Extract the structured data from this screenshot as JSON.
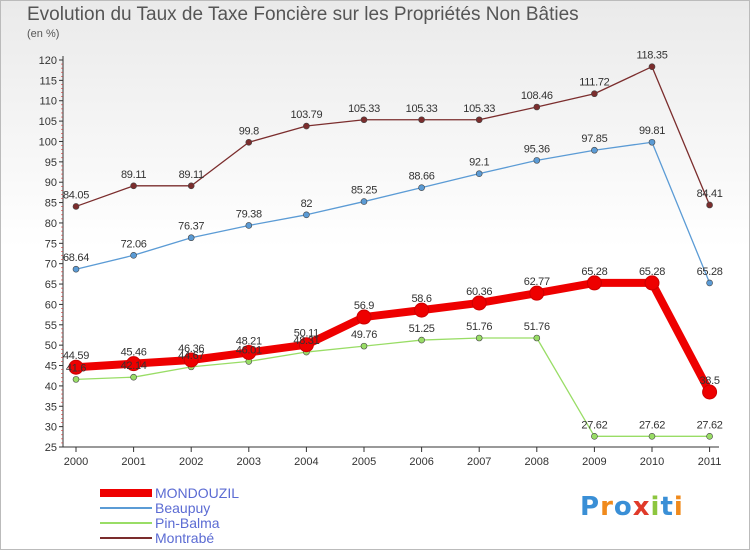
{
  "chart_data": {
    "type": "line",
    "title": "Evolution du Taux de Taxe Foncière sur les Propriétés Non Bâties",
    "subtitle": "(en %)",
    "x": [
      "2000",
      "2001",
      "2002",
      "2003",
      "2004",
      "2005",
      "2006",
      "2007",
      "2008",
      "2009",
      "2010",
      "2011"
    ],
    "ylim": [
      25,
      120
    ],
    "yticks": [
      25,
      30,
      35,
      40,
      45,
      50,
      55,
      60,
      65,
      70,
      75,
      80,
      85,
      90,
      95,
      100,
      105,
      110,
      115,
      120
    ],
    "grid": false,
    "legend_position": "bottom-left",
    "series": [
      {
        "name": "MONDOUZIL",
        "color": "#ee0000",
        "values": [
          44.59,
          45.46,
          46.36,
          48.21,
          50.11,
          56.9,
          58.6,
          60.36,
          62.77,
          65.28,
          65.28,
          38.5
        ],
        "labels": [
          "44.59",
          "45.46",
          "46.36",
          "48.21",
          "50.11",
          "56.9",
          "58.6",
          "60.36",
          "62.77",
          "65.28",
          "65.28",
          "38.5"
        ]
      },
      {
        "name": "Beaupuy",
        "color": "#5b9bd5",
        "values": [
          68.64,
          72.06,
          76.37,
          79.38,
          82,
          85.25,
          88.66,
          92.1,
          95.36,
          97.85,
          99.81,
          65.28
        ],
        "labels": [
          "68.64",
          "72.06",
          "76.37",
          "79.38",
          "82",
          "85.25",
          "88.66",
          "92.1",
          "95.36",
          "97.85",
          "99.81",
          "65.28"
        ]
      },
      {
        "name": "Pin-Balma",
        "color": "#99dd66",
        "values": [
          41.6,
          42.14,
          44.67,
          46.01,
          48.31,
          49.76,
          51.25,
          51.76,
          51.76,
          27.62,
          27.62,
          27.62
        ],
        "labels": [
          "41.6",
          "42.14",
          "44.67",
          "46.01",
          "48.31",
          "49.76",
          "51.25",
          "51.76",
          "51.76",
          "27.62",
          "27.62",
          "27.62"
        ]
      },
      {
        "name": "Montrabé",
        "color": "#7b2d2d",
        "values": [
          84.05,
          89.11,
          89.11,
          99.8,
          103.79,
          105.33,
          105.33,
          105.33,
          108.46,
          111.72,
          118.35,
          84.41
        ],
        "labels": [
          "84.05",
          "89.11",
          "89.11",
          "99.8",
          "103.79",
          "105.33",
          "105.33",
          "105.33",
          "108.46",
          "111.72",
          "118.35",
          "84.41"
        ]
      }
    ]
  },
  "logo": {
    "text": "Proxiti",
    "colors": [
      "#3a8fd6",
      "#f08a1c",
      "#3a8fd6",
      "#e03a2a",
      "#8dc63f",
      "#3a8fd6",
      "#f08a1c"
    ]
  }
}
